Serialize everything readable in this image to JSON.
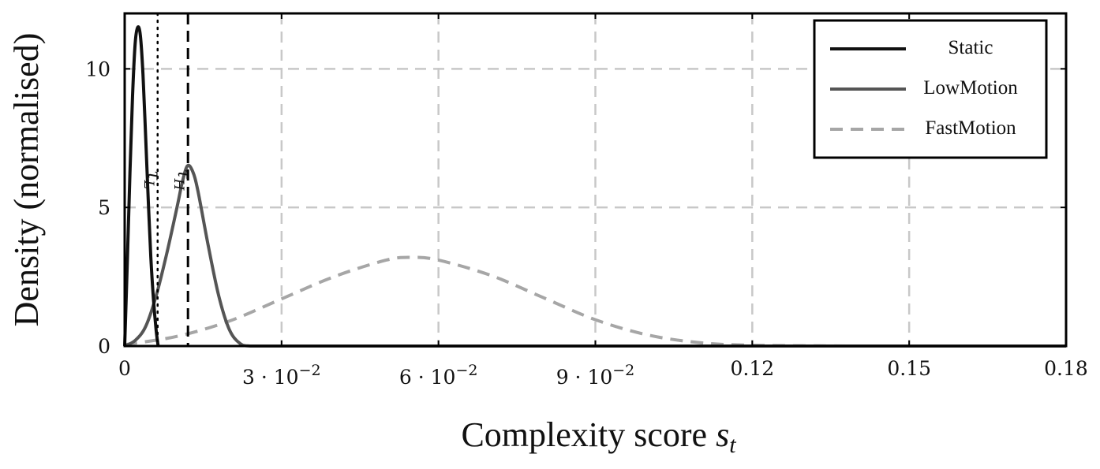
{
  "chart_data": {
    "type": "line",
    "xlabel": "Complexity score",
    "xlabel_var": "s",
    "xlabel_sub": "t",
    "ylabel": "Density (normalised)",
    "xlim": [
      0,
      0.18
    ],
    "ylim": [
      0,
      12
    ],
    "grid": true,
    "legend_position": "top-right",
    "x_ticks": [
      {
        "value": 0,
        "label": "0"
      },
      {
        "value": 0.03,
        "label": "3 · 10",
        "exp": "−2"
      },
      {
        "value": 0.06,
        "label": "6 · 10",
        "exp": "−2"
      },
      {
        "value": 0.09,
        "label": "9 · 10",
        "exp": "−2"
      },
      {
        "value": 0.12,
        "label": "0.12"
      },
      {
        "value": 0.15,
        "label": "0.15"
      },
      {
        "value": 0.18,
        "label": "0.18"
      }
    ],
    "y_ticks": [
      {
        "value": 0,
        "label": "0"
      },
      {
        "value": 5,
        "label": "5"
      },
      {
        "value": 10,
        "label": "10"
      }
    ],
    "thresholds": [
      {
        "name": "τL",
        "sub": "L",
        "x": 0.0063,
        "style": "dotted"
      },
      {
        "name": "τH",
        "sub": "H",
        "x": 0.0121,
        "style": "dashed"
      }
    ],
    "series": [
      {
        "name": "Static",
        "color": "#111111",
        "style": "solid",
        "x": [
          0,
          0.0005,
          0.001,
          0.0015,
          0.002,
          0.0025,
          0.003,
          0.0035,
          0.004,
          0.0045,
          0.005,
          0.0055,
          0.006,
          0.0064
        ],
        "y": [
          0,
          3.0,
          6.2,
          9.0,
          10.9,
          11.5,
          11.2,
          9.8,
          7.6,
          5.3,
          3.2,
          1.7,
          0.6,
          0.0
        ]
      },
      {
        "name": "LowMotion",
        "color": "#555555",
        "style": "solid",
        "x": [
          0,
          0.002,
          0.004,
          0.006,
          0.008,
          0.01,
          0.011,
          0.012,
          0.013,
          0.014,
          0.016,
          0.018,
          0.02,
          0.022,
          0.024,
          0.03,
          0.06,
          0.12,
          0.18
        ],
        "y": [
          0,
          0.2,
          0.7,
          1.8,
          3.3,
          5.0,
          5.9,
          6.5,
          6.3,
          5.6,
          3.6,
          1.8,
          0.6,
          0.1,
          0.0,
          0.0,
          0.0,
          0.0,
          0.0
        ]
      },
      {
        "name": "FastMotion",
        "color": "#a6a6a6",
        "style": "dashed",
        "x": [
          0,
          0.01,
          0.02,
          0.03,
          0.04,
          0.05,
          0.055,
          0.06,
          0.07,
          0.08,
          0.09,
          0.1,
          0.11,
          0.12,
          0.14,
          0.16,
          0.18
        ],
        "y": [
          0.05,
          0.35,
          0.9,
          1.7,
          2.5,
          3.1,
          3.2,
          3.1,
          2.55,
          1.75,
          0.95,
          0.4,
          0.12,
          0.03,
          0.0,
          0.0,
          0.0
        ]
      }
    ]
  }
}
